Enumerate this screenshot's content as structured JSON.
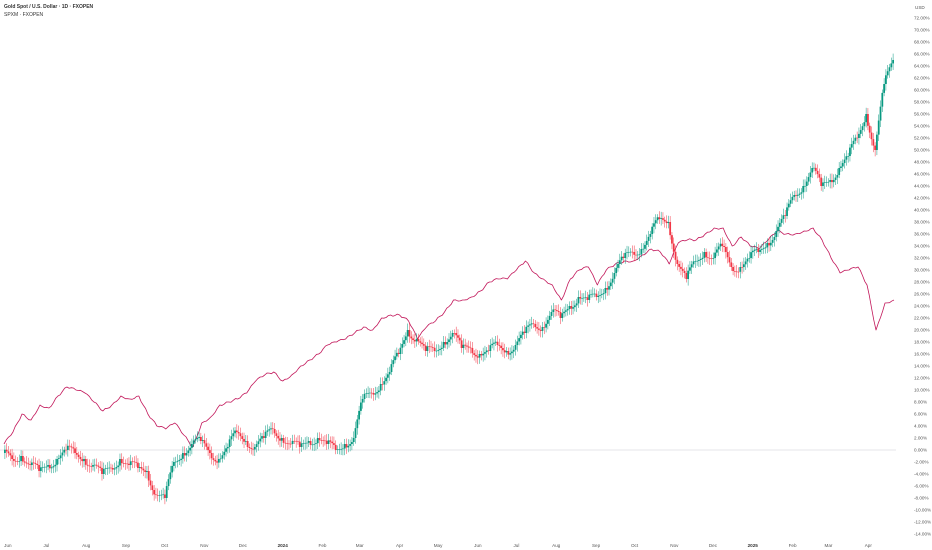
{
  "legend": {
    "line1": "Gold Spot / U.S. Dollar · 1D · FXOPEN",
    "line2": "SPXM · FXOPEN"
  },
  "chart_data": {
    "type": "line",
    "title": "",
    "y_unit_label": "USD",
    "y_scale": "percent",
    "ylim": [
      -15,
      73
    ],
    "y_ticks": [
      72,
      70,
      68,
      66,
      64,
      62,
      60,
      58,
      56,
      54,
      52,
      50,
      48,
      46,
      44,
      42,
      40,
      38,
      36,
      34,
      32,
      30,
      28,
      26,
      24,
      22,
      20,
      18,
      16,
      14,
      12,
      10,
      8,
      6,
      4,
      2,
      0,
      -2,
      -4,
      -6,
      -8,
      -10,
      -12,
      -14
    ],
    "y_tick_labels": [
      "72.00%",
      "70.00%",
      "68.00%",
      "66.00%",
      "64.00%",
      "62.00%",
      "60.00%",
      "58.00%",
      "56.00%",
      "54.00%",
      "52.00%",
      "50.00%",
      "48.00%",
      "46.00%",
      "44.00%",
      "42.00%",
      "40.00%",
      "38.00%",
      "36.00%",
      "34.00%",
      "32.00%",
      "30.00%",
      "28.00%",
      "26.00%",
      "24.00%",
      "22.00%",
      "20.00%",
      "18.00%",
      "16.00%",
      "14.00%",
      "12.00%",
      "10.00%",
      "8.00%",
      "6.00%",
      "4.00%",
      "2.00%",
      "0.00%",
      "-2.00%",
      "-4.00%",
      "-6.00%",
      "-8.00%",
      "-10.00%",
      "-12.00%",
      "-14.00%"
    ],
    "x_start": "2023-05-29",
    "x_end": "2025-04-21",
    "x_ticks": [
      {
        "label": "Jun",
        "date": "2023-06-01",
        "bold": false
      },
      {
        "label": "Jul",
        "date": "2023-07-01",
        "bold": false
      },
      {
        "label": "Aug",
        "date": "2023-08-01",
        "bold": false
      },
      {
        "label": "Sep",
        "date": "2023-09-01",
        "bold": false
      },
      {
        "label": "Oct",
        "date": "2023-10-01",
        "bold": false
      },
      {
        "label": "Nov",
        "date": "2023-11-01",
        "bold": false
      },
      {
        "label": "Dec",
        "date": "2023-12-01",
        "bold": false
      },
      {
        "label": "2024",
        "date": "2024-01-01",
        "bold": true
      },
      {
        "label": "Feb",
        "date": "2024-02-01",
        "bold": false
      },
      {
        "label": "Mar",
        "date": "2024-03-01",
        "bold": false
      },
      {
        "label": "Apr",
        "date": "2024-04-01",
        "bold": false
      },
      {
        "label": "May",
        "date": "2024-05-01",
        "bold": false
      },
      {
        "label": "Jun",
        "date": "2024-06-01",
        "bold": false
      },
      {
        "label": "Jul",
        "date": "2024-07-01",
        "bold": false
      },
      {
        "label": "Aug",
        "date": "2024-08-01",
        "bold": false
      },
      {
        "label": "Sep",
        "date": "2024-09-01",
        "bold": false
      },
      {
        "label": "Oct",
        "date": "2024-10-01",
        "bold": false
      },
      {
        "label": "Nov",
        "date": "2024-11-01",
        "bold": false
      },
      {
        "label": "Dec",
        "date": "2024-12-01",
        "bold": false
      },
      {
        "label": "2025",
        "date": "2025-01-01",
        "bold": true
      },
      {
        "label": "Feb",
        "date": "2025-02-01",
        "bold": false
      },
      {
        "label": "Mar",
        "date": "2025-03-01",
        "bold": false
      },
      {
        "label": "Apr",
        "date": "2025-04-01",
        "bold": false
      }
    ],
    "zero_line": 0,
    "series": [
      {
        "name": "Gold Spot / U.S. Dollar",
        "style": "candles",
        "color_up": "#089981",
        "color_down": "#f23645",
        "points": [
          [
            "2023-05-29",
            -0.5
          ],
          [
            "2023-06-05",
            -1.5
          ],
          [
            "2023-06-12",
            -1.0
          ],
          [
            "2023-06-19",
            -2.5
          ],
          [
            "2023-06-26",
            -3.5
          ],
          [
            "2023-07-03",
            -2.5
          ],
          [
            "2023-07-10",
            -1.5
          ],
          [
            "2023-07-17",
            0.0
          ],
          [
            "2023-07-24",
            -0.5
          ],
          [
            "2023-07-31",
            -1.5
          ],
          [
            "2023-08-07",
            -2.5
          ],
          [
            "2023-08-14",
            -4.0
          ],
          [
            "2023-08-21",
            -3.0
          ],
          [
            "2023-08-28",
            -1.5
          ],
          [
            "2023-09-04",
            -2.5
          ],
          [
            "2023-09-11",
            -3.0
          ],
          [
            "2023-09-18",
            -3.5
          ],
          [
            "2023-09-25",
            -7.5
          ],
          [
            "2023-10-02",
            -8.0
          ],
          [
            "2023-10-09",
            -2.0
          ],
          [
            "2023-10-16",
            -0.5
          ],
          [
            "2023-10-23",
            1.0
          ],
          [
            "2023-10-30",
            1.5
          ],
          [
            "2023-11-06",
            -0.5
          ],
          [
            "2023-11-13",
            -1.5
          ],
          [
            "2023-11-20",
            0.5
          ],
          [
            "2023-11-27",
            3.0
          ],
          [
            "2023-12-04",
            1.5
          ],
          [
            "2023-12-11",
            0.5
          ],
          [
            "2023-12-18",
            2.0
          ],
          [
            "2023-12-25",
            3.5
          ],
          [
            "2024-01-01",
            2.0
          ],
          [
            "2024-01-08",
            1.0
          ],
          [
            "2024-01-15",
            0.5
          ],
          [
            "2024-01-22",
            1.5
          ],
          [
            "2024-01-29",
            2.0
          ],
          [
            "2024-02-05",
            1.0
          ],
          [
            "2024-02-12",
            0.0
          ],
          [
            "2024-02-19",
            1.0
          ],
          [
            "2024-02-26",
            2.0
          ],
          [
            "2024-03-04",
            8.5
          ],
          [
            "2024-03-11",
            9.5
          ],
          [
            "2024-03-18",
            11.0
          ],
          [
            "2024-03-25",
            13.0
          ],
          [
            "2024-04-01",
            16.0
          ],
          [
            "2024-04-08",
            20.0
          ],
          [
            "2024-04-15",
            18.5
          ],
          [
            "2024-04-22",
            16.5
          ],
          [
            "2024-04-29",
            16.5
          ],
          [
            "2024-05-06",
            18.0
          ],
          [
            "2024-05-13",
            19.5
          ],
          [
            "2024-05-20",
            17.0
          ],
          [
            "2024-05-27",
            17.0
          ],
          [
            "2024-06-03",
            16.0
          ],
          [
            "2024-06-10",
            16.5
          ],
          [
            "2024-06-17",
            17.5
          ],
          [
            "2024-06-24",
            16.5
          ],
          [
            "2024-07-01",
            17.5
          ],
          [
            "2024-07-08",
            19.5
          ],
          [
            "2024-07-15",
            21.0
          ],
          [
            "2024-07-22",
            20.5
          ],
          [
            "2024-07-29",
            23.0
          ],
          [
            "2024-08-05",
            22.0
          ],
          [
            "2024-08-12",
            24.0
          ],
          [
            "2024-08-19",
            25.5
          ],
          [
            "2024-08-26",
            25.0
          ],
          [
            "2024-09-02",
            25.5
          ],
          [
            "2024-09-09",
            27.0
          ],
          [
            "2024-09-16",
            29.5
          ],
          [
            "2024-09-23",
            32.0
          ],
          [
            "2024-09-30",
            33.0
          ],
          [
            "2024-10-07",
            33.5
          ],
          [
            "2024-10-14",
            36.0
          ],
          [
            "2024-10-21",
            38.5
          ],
          [
            "2024-10-28",
            38.0
          ],
          [
            "2024-11-04",
            31.0
          ],
          [
            "2024-11-11",
            28.5
          ],
          [
            "2024-11-18",
            31.5
          ],
          [
            "2024-11-25",
            33.0
          ],
          [
            "2024-12-02",
            32.0
          ],
          [
            "2024-12-09",
            34.0
          ],
          [
            "2024-12-16",
            30.5
          ],
          [
            "2024-12-23",
            30.5
          ],
          [
            "2024-12-30",
            32.0
          ],
          [
            "2025-01-06",
            33.0
          ],
          [
            "2025-01-13",
            34.5
          ],
          [
            "2025-01-20",
            36.5
          ],
          [
            "2025-01-27",
            39.0
          ],
          [
            "2025-02-03",
            42.5
          ],
          [
            "2025-02-10",
            44.0
          ],
          [
            "2025-02-17",
            47.0
          ],
          [
            "2025-02-24",
            44.0
          ],
          [
            "2025-03-03",
            45.0
          ],
          [
            "2025-03-10",
            47.0
          ],
          [
            "2025-03-17",
            49.0
          ],
          [
            "2025-03-24",
            52.0
          ],
          [
            "2025-03-31",
            56.0
          ],
          [
            "2025-04-07",
            50.0
          ],
          [
            "2025-04-14",
            61.0
          ],
          [
            "2025-04-21",
            65.0
          ]
        ]
      },
      {
        "name": "SPXM",
        "style": "line",
        "color": "#c2185b",
        "points": [
          [
            "2023-05-29",
            1.0
          ],
          [
            "2023-06-05",
            3.0
          ],
          [
            "2023-06-12",
            6.0
          ],
          [
            "2023-06-19",
            5.0
          ],
          [
            "2023-06-26",
            7.5
          ],
          [
            "2023-07-03",
            7.0
          ],
          [
            "2023-07-10",
            9.0
          ],
          [
            "2023-07-17",
            10.5
          ],
          [
            "2023-07-24",
            10.0
          ],
          [
            "2023-07-31",
            9.5
          ],
          [
            "2023-08-07",
            8.0
          ],
          [
            "2023-08-14",
            6.5
          ],
          [
            "2023-08-21",
            7.5
          ],
          [
            "2023-08-28",
            9.0
          ],
          [
            "2023-09-04",
            8.5
          ],
          [
            "2023-09-11",
            9.0
          ],
          [
            "2023-09-18",
            6.0
          ],
          [
            "2023-09-25",
            4.0
          ],
          [
            "2023-10-02",
            3.5
          ],
          [
            "2023-10-09",
            4.5
          ],
          [
            "2023-10-16",
            2.5
          ],
          [
            "2023-10-23",
            0.5
          ],
          [
            "2023-10-30",
            4.5
          ],
          [
            "2023-11-06",
            5.5
          ],
          [
            "2023-11-13",
            7.5
          ],
          [
            "2023-11-20",
            8.0
          ],
          [
            "2023-11-27",
            8.5
          ],
          [
            "2023-12-04",
            9.5
          ],
          [
            "2023-12-11",
            11.5
          ],
          [
            "2023-12-18",
            12.5
          ],
          [
            "2023-12-25",
            13.0
          ],
          [
            "2024-01-01",
            11.5
          ],
          [
            "2024-01-08",
            12.5
          ],
          [
            "2024-01-15",
            14.0
          ],
          [
            "2024-01-22",
            15.0
          ],
          [
            "2024-01-29",
            16.0
          ],
          [
            "2024-02-05",
            17.5
          ],
          [
            "2024-02-12",
            18.0
          ],
          [
            "2024-02-19",
            18.5
          ],
          [
            "2024-02-26",
            19.5
          ],
          [
            "2024-03-04",
            20.5
          ],
          [
            "2024-03-11",
            20.0
          ],
          [
            "2024-03-18",
            22.0
          ],
          [
            "2024-03-25",
            22.5
          ],
          [
            "2024-04-01",
            22.5
          ],
          [
            "2024-04-08",
            21.5
          ],
          [
            "2024-04-15",
            18.5
          ],
          [
            "2024-04-22",
            20.5
          ],
          [
            "2024-04-29",
            21.5
          ],
          [
            "2024-05-06",
            23.0
          ],
          [
            "2024-05-13",
            25.0
          ],
          [
            "2024-05-20",
            25.0
          ],
          [
            "2024-05-27",
            25.5
          ],
          [
            "2024-06-03",
            26.5
          ],
          [
            "2024-06-10",
            28.0
          ],
          [
            "2024-06-17",
            28.5
          ],
          [
            "2024-06-24",
            28.5
          ],
          [
            "2024-07-01",
            30.0
          ],
          [
            "2024-07-08",
            31.5
          ],
          [
            "2024-07-15",
            29.5
          ],
          [
            "2024-07-22",
            28.5
          ],
          [
            "2024-07-29",
            27.5
          ],
          [
            "2024-08-05",
            25.0
          ],
          [
            "2024-08-12",
            28.5
          ],
          [
            "2024-08-19",
            30.0
          ],
          [
            "2024-08-26",
            30.5
          ],
          [
            "2024-09-02",
            27.5
          ],
          [
            "2024-09-09",
            30.0
          ],
          [
            "2024-09-16",
            31.0
          ],
          [
            "2024-09-23",
            31.5
          ],
          [
            "2024-09-30",
            31.5
          ],
          [
            "2024-10-07",
            32.5
          ],
          [
            "2024-10-14",
            33.5
          ],
          [
            "2024-10-21",
            33.0
          ],
          [
            "2024-10-28",
            31.0
          ],
          [
            "2024-11-04",
            34.5
          ],
          [
            "2024-11-11",
            35.0
          ],
          [
            "2024-11-18",
            35.0
          ],
          [
            "2024-11-25",
            36.0
          ],
          [
            "2024-12-02",
            37.0
          ],
          [
            "2024-12-09",
            37.0
          ],
          [
            "2024-12-16",
            34.0
          ],
          [
            "2024-12-23",
            35.5
          ],
          [
            "2024-12-30",
            34.0
          ],
          [
            "2025-01-06",
            33.5
          ],
          [
            "2025-01-13",
            35.0
          ],
          [
            "2025-01-20",
            36.5
          ],
          [
            "2025-01-27",
            36.0
          ],
          [
            "2025-02-03",
            36.0
          ],
          [
            "2025-02-10",
            36.5
          ],
          [
            "2025-02-17",
            37.0
          ],
          [
            "2025-02-24",
            35.0
          ],
          [
            "2025-03-03",
            32.0
          ],
          [
            "2025-03-10",
            29.5
          ],
          [
            "2025-03-17",
            30.0
          ],
          [
            "2025-03-24",
            30.5
          ],
          [
            "2025-03-31",
            27.5
          ],
          [
            "2025-04-07",
            20.0
          ],
          [
            "2025-04-14",
            24.5
          ],
          [
            "2025-04-21",
            25.0
          ]
        ]
      }
    ]
  }
}
